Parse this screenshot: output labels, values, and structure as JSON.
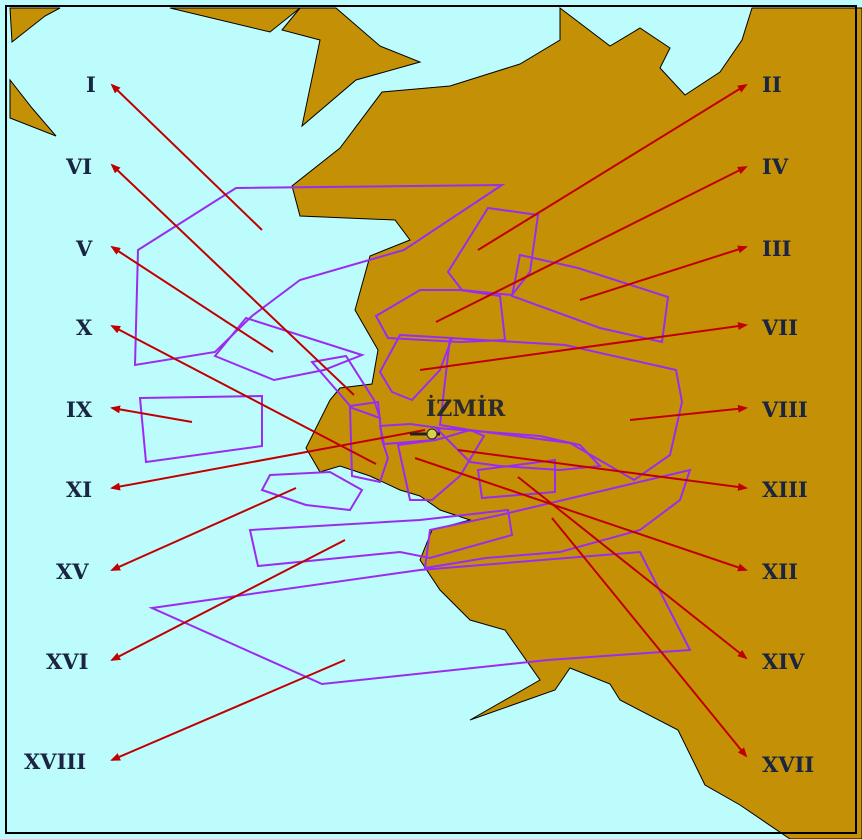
{
  "colors": {
    "sea": "#bdfcfc",
    "land": "#c49106",
    "coastline": "#000000",
    "zone_outline": "#9a2cf0",
    "arrow": "#c00000",
    "frame": "#000000"
  },
  "map": {
    "city_name": "İZMİR",
    "city_marker_icon": "city-marker-icon",
    "zones": [
      {
        "id": "I",
        "label": "I"
      },
      {
        "id": "II",
        "label": "II"
      },
      {
        "id": "III",
        "label": "III"
      },
      {
        "id": "IV",
        "label": "IV"
      },
      {
        "id": "V",
        "label": "V"
      },
      {
        "id": "VI",
        "label": "VI"
      },
      {
        "id": "VII",
        "label": "VII"
      },
      {
        "id": "VIII",
        "label": "VIII"
      },
      {
        "id": "IX",
        "label": "IX"
      },
      {
        "id": "X",
        "label": "X"
      },
      {
        "id": "XI",
        "label": "XI"
      },
      {
        "id": "XII",
        "label": "XII"
      },
      {
        "id": "XIII",
        "label": "XIII"
      },
      {
        "id": "XIV",
        "label": "XIV"
      },
      {
        "id": "XV",
        "label": "XV"
      },
      {
        "id": "XVI",
        "label": "XVI"
      },
      {
        "id": "XVII",
        "label": "XVII"
      },
      {
        "id": "XVIII",
        "label": "XVIII"
      }
    ]
  }
}
